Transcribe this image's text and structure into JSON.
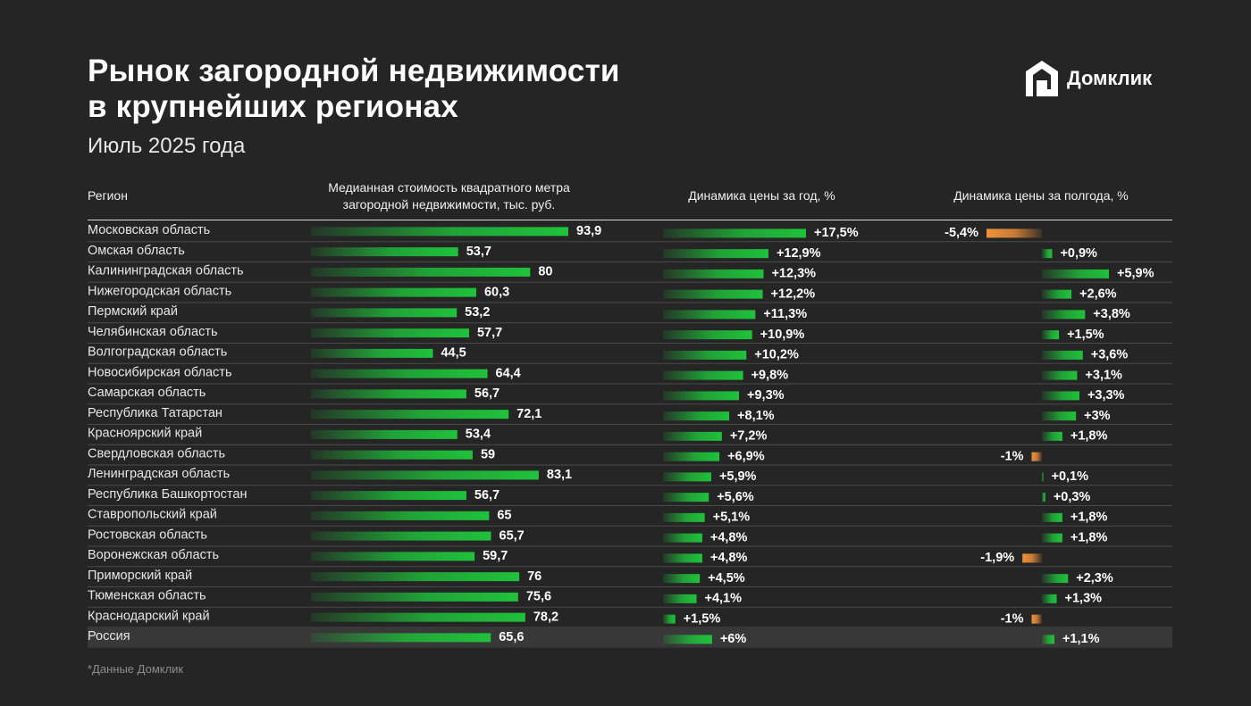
{
  "title_line1": "Рынок загородной недвижимости",
  "title_line2": "в крупнейших регионах",
  "subtitle": "Июль 2025 года",
  "logo_text": "Домклик",
  "headers": {
    "region": "Регион",
    "price_line1": "Медианная стоимость квадратного метра",
    "price_line2": "загородной недвижимости, тыс. руб.",
    "year": "Динамика цены за год, %",
    "half": "Динамика цены за полгода, %"
  },
  "footnote": "*Данные Домклик",
  "colors": {
    "background": "#252525",
    "positive_bar": "#1fc23b",
    "negative_bar": "#f0913a",
    "total_row_bg": "#383838"
  },
  "chart_data": {
    "type": "table",
    "columns": [
      "Регион",
      "Медианная стоимость квадратного метра загородной недвижимости, тыс. руб.",
      "Динамика цены за год, %",
      "Динамика цены за полгода, %"
    ],
    "rows": [
      {
        "region": "Московская область",
        "price": 93.9,
        "price_label": "93,9",
        "year": 17.5,
        "year_label": "+17,5%",
        "half": -5.4,
        "half_label": "-5,4%"
      },
      {
        "region": "Омская область",
        "price": 53.7,
        "price_label": "53,7",
        "year": 12.9,
        "year_label": "+12,9%",
        "half": 0.9,
        "half_label": "+0,9%"
      },
      {
        "region": "Калининградская область",
        "price": 80,
        "price_label": "80",
        "year": 12.3,
        "year_label": "+12,3%",
        "half": 5.9,
        "half_label": "+5,9%"
      },
      {
        "region": "Нижегородская область",
        "price": 60.3,
        "price_label": "60,3",
        "year": 12.2,
        "year_label": "+12,2%",
        "half": 2.6,
        "half_label": "+2,6%"
      },
      {
        "region": "Пермский край",
        "price": 53.2,
        "price_label": "53,2",
        "year": 11.3,
        "year_label": "+11,3%",
        "half": 3.8,
        "half_label": "+3,8%"
      },
      {
        "region": "Челябинская область",
        "price": 57.7,
        "price_label": "57,7",
        "year": 10.9,
        "year_label": "+10,9%",
        "half": 1.5,
        "half_label": "+1,5%"
      },
      {
        "region": "Волгоградская область",
        "price": 44.5,
        "price_label": "44,5",
        "year": 10.2,
        "year_label": "+10,2%",
        "half": 3.6,
        "half_label": "+3,6%"
      },
      {
        "region": "Новосибирская область",
        "price": 64.4,
        "price_label": "64,4",
        "year": 9.8,
        "year_label": "+9,8%",
        "half": 3.1,
        "half_label": "+3,1%"
      },
      {
        "region": "Самарская область",
        "price": 56.7,
        "price_label": "56,7",
        "year": 9.3,
        "year_label": "+9,3%",
        "half": 3.3,
        "half_label": "+3,3%"
      },
      {
        "region": "Республика Татарстан",
        "price": 72.1,
        "price_label": "72,1",
        "year": 8.1,
        "year_label": "+8,1%",
        "half": 3,
        "half_label": "+3%"
      },
      {
        "region": "Красноярский край",
        "price": 53.4,
        "price_label": "53,4",
        "year": 7.2,
        "year_label": "+7,2%",
        "half": 1.8,
        "half_label": "+1,8%"
      },
      {
        "region": "Свердловская область",
        "price": 59,
        "price_label": "59",
        "year": 6.9,
        "year_label": "+6,9%",
        "half": -1,
        "half_label": "-1%"
      },
      {
        "region": "Ленинградская область",
        "price": 83.1,
        "price_label": "83,1",
        "year": 5.9,
        "year_label": "+5,9%",
        "half": 0.1,
        "half_label": "+0,1%"
      },
      {
        "region": "Республика Башкортостан",
        "price": 56.7,
        "price_label": "56,7",
        "year": 5.6,
        "year_label": "+5,6%",
        "half": 0.3,
        "half_label": "+0,3%"
      },
      {
        "region": "Ставропольский край",
        "price": 65,
        "price_label": "65",
        "year": 5.1,
        "year_label": "+5,1%",
        "half": 1.8,
        "half_label": "+1,8%"
      },
      {
        "region": "Ростовская область",
        "price": 65.7,
        "price_label": "65,7",
        "year": 4.8,
        "year_label": "+4,8%",
        "half": 1.8,
        "half_label": "+1,8%"
      },
      {
        "region": "Воронежская область",
        "price": 59.7,
        "price_label": "59,7",
        "year": 4.8,
        "year_label": "+4,8%",
        "half": -1.9,
        "half_label": "-1,9%"
      },
      {
        "region": "Приморский край",
        "price": 76,
        "price_label": "76",
        "year": 4.5,
        "year_label": "+4,5%",
        "half": 2.3,
        "half_label": "+2,3%"
      },
      {
        "region": "Тюменская область",
        "price": 75.6,
        "price_label": "75,6",
        "year": 4.1,
        "year_label": "+4,1%",
        "half": 1.3,
        "half_label": "+1,3%"
      },
      {
        "region": "Краснодарский край",
        "price": 78.2,
        "price_label": "78,2",
        "year": 1.5,
        "year_label": "+1,5%",
        "half": -1,
        "half_label": "-1%"
      },
      {
        "region": "Россия",
        "price": 65.6,
        "price_label": "65,6",
        "year": 6,
        "year_label": "+6%",
        "half": 1.1,
        "half_label": "+1,1%",
        "total": true
      }
    ]
  }
}
